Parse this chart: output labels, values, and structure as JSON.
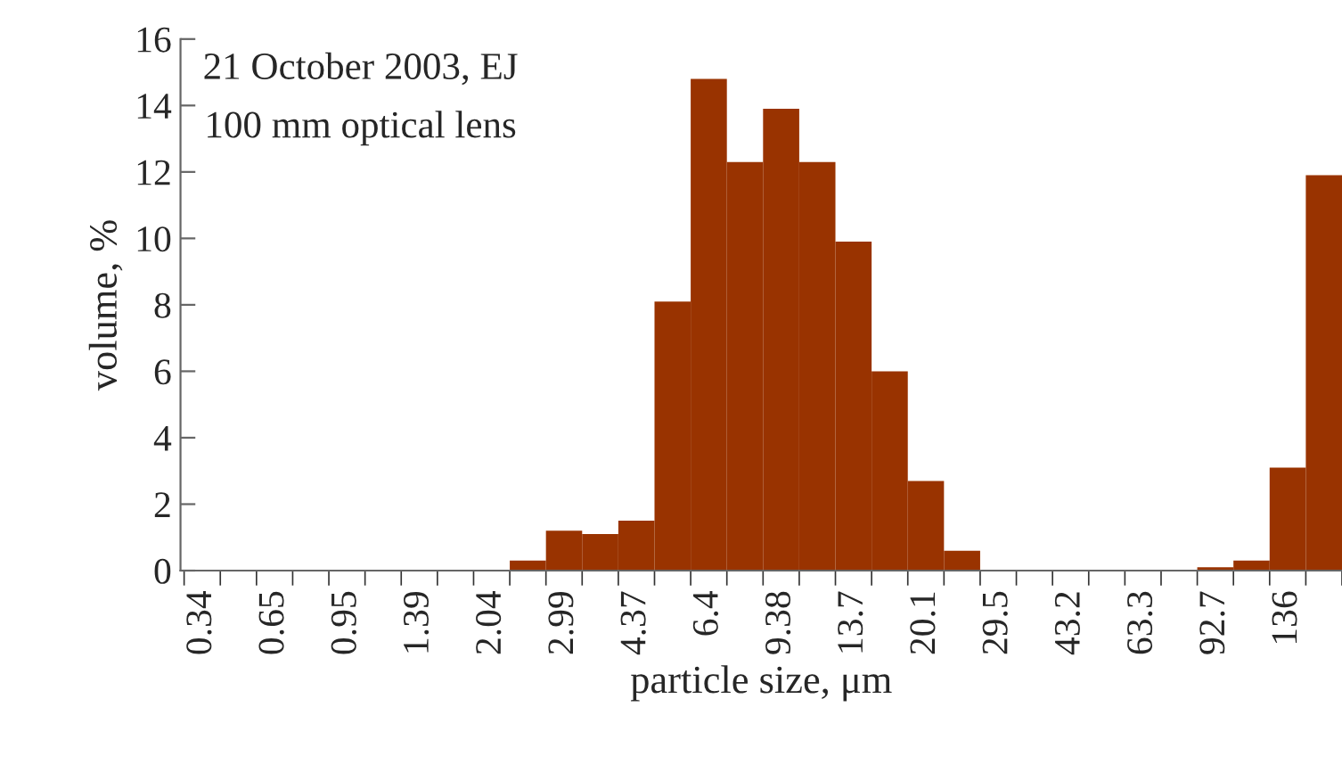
{
  "chart_data": {
    "type": "bar",
    "xlabel": "particle size, μm",
    "ylabel": "volume, %",
    "annotations": [
      "21 October 2003, EJ",
      "100 mm optical lens"
    ],
    "categories": [
      "0.34",
      null,
      "0.65",
      null,
      "0.95",
      null,
      "1.39",
      null,
      "2.04",
      null,
      "2.99",
      null,
      "4.37",
      null,
      "6.4",
      null,
      "9.38",
      null,
      "13.7",
      null,
      "20.1",
      null,
      "29.5",
      null,
      "43.2",
      null,
      "63.3",
      null,
      "92.7",
      null,
      "136",
      null
    ],
    "values": [
      0,
      0,
      0,
      0,
      0,
      0,
      0,
      0,
      0,
      0.3,
      1.2,
      1.1,
      1.5,
      8.1,
      14.8,
      12.3,
      13.9,
      12.3,
      9.9,
      6.0,
      2.7,
      0.6,
      0,
      0,
      0,
      0,
      0,
      0,
      0.1,
      0.3,
      3.1,
      11.9
    ],
    "color": "#993300",
    "ylim": [
      0,
      16
    ],
    "yticks": [
      0,
      2,
      4,
      6,
      8,
      10,
      12,
      14,
      16
    ],
    "grid": false,
    "legend": false
  }
}
